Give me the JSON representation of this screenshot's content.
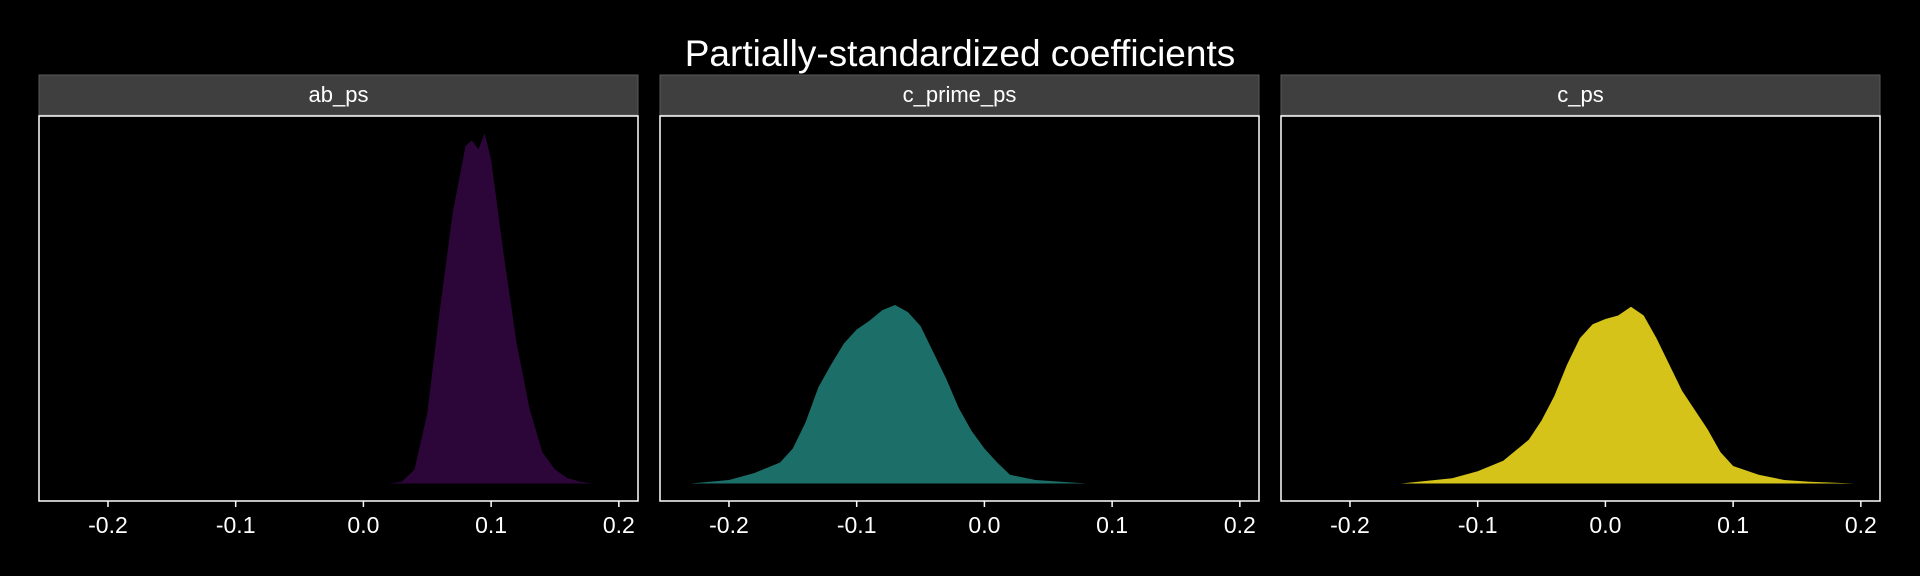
{
  "chart_data": {
    "type": "area",
    "title": "Partially-standardized coefficients",
    "xlim": [
      -0.254,
      0.215
    ],
    "xticks": [
      -0.2,
      -0.1,
      {
        "value": 0,
        "label": "0.0"
      },
      0.1,
      0.2
    ],
    "ylim": [
      -1,
      21
    ],
    "series": [
      {
        "name": "ab_ps",
        "color": "#2c0639",
        "x": [
          0.02,
          0.03,
          0.04,
          0.05,
          0.06,
          0.07,
          0.08,
          0.085,
          0.09,
          0.095,
          0.1,
          0.11,
          0.12,
          0.13,
          0.14,
          0.15,
          0.16,
          0.17,
          0.18
        ],
        "values": [
          0,
          0.1,
          0.8,
          4,
          10,
          15.5,
          19.3,
          19.6,
          19.1,
          20,
          18.5,
          13,
          8,
          4.3,
          1.8,
          0.8,
          0.3,
          0.1,
          0
        ]
      },
      {
        "name": "c_prime_ps",
        "color": "#1c6f69",
        "x": [
          -0.23,
          -0.2,
          -0.18,
          -0.16,
          -0.15,
          -0.14,
          -0.13,
          -0.12,
          -0.11,
          -0.1,
          -0.09,
          -0.08,
          -0.07,
          -0.06,
          -0.05,
          -0.04,
          -0.03,
          -0.02,
          -0.01,
          0,
          0.01,
          0.02,
          0.04,
          0.06,
          0.08
        ],
        "values": [
          0,
          0.2,
          0.6,
          1.2,
          2,
          3.5,
          5.5,
          6.8,
          8,
          8.8,
          9.3,
          9.9,
          10.2,
          9.8,
          9,
          7.5,
          6,
          4.3,
          3,
          2,
          1.2,
          0.5,
          0.2,
          0.1,
          0
        ]
      },
      {
        "name": "c_ps",
        "color": "#d5c319",
        "x": [
          -0.16,
          -0.12,
          -0.1,
          -0.08,
          -0.06,
          -0.05,
          -0.04,
          -0.03,
          -0.02,
          -0.01,
          0,
          0.01,
          0.02,
          0.03,
          0.04,
          0.05,
          0.06,
          0.07,
          0.08,
          0.09,
          0.1,
          0.12,
          0.14,
          0.16,
          0.195
        ],
        "values": [
          0,
          0.3,
          0.7,
          1.3,
          2.5,
          3.6,
          5,
          6.8,
          8.3,
          9.1,
          9.4,
          9.6,
          10.1,
          9.6,
          8.3,
          6.8,
          5.3,
          4.2,
          3.1,
          1.8,
          1,
          0.5,
          0.2,
          0.1,
          0
        ]
      }
    ]
  }
}
